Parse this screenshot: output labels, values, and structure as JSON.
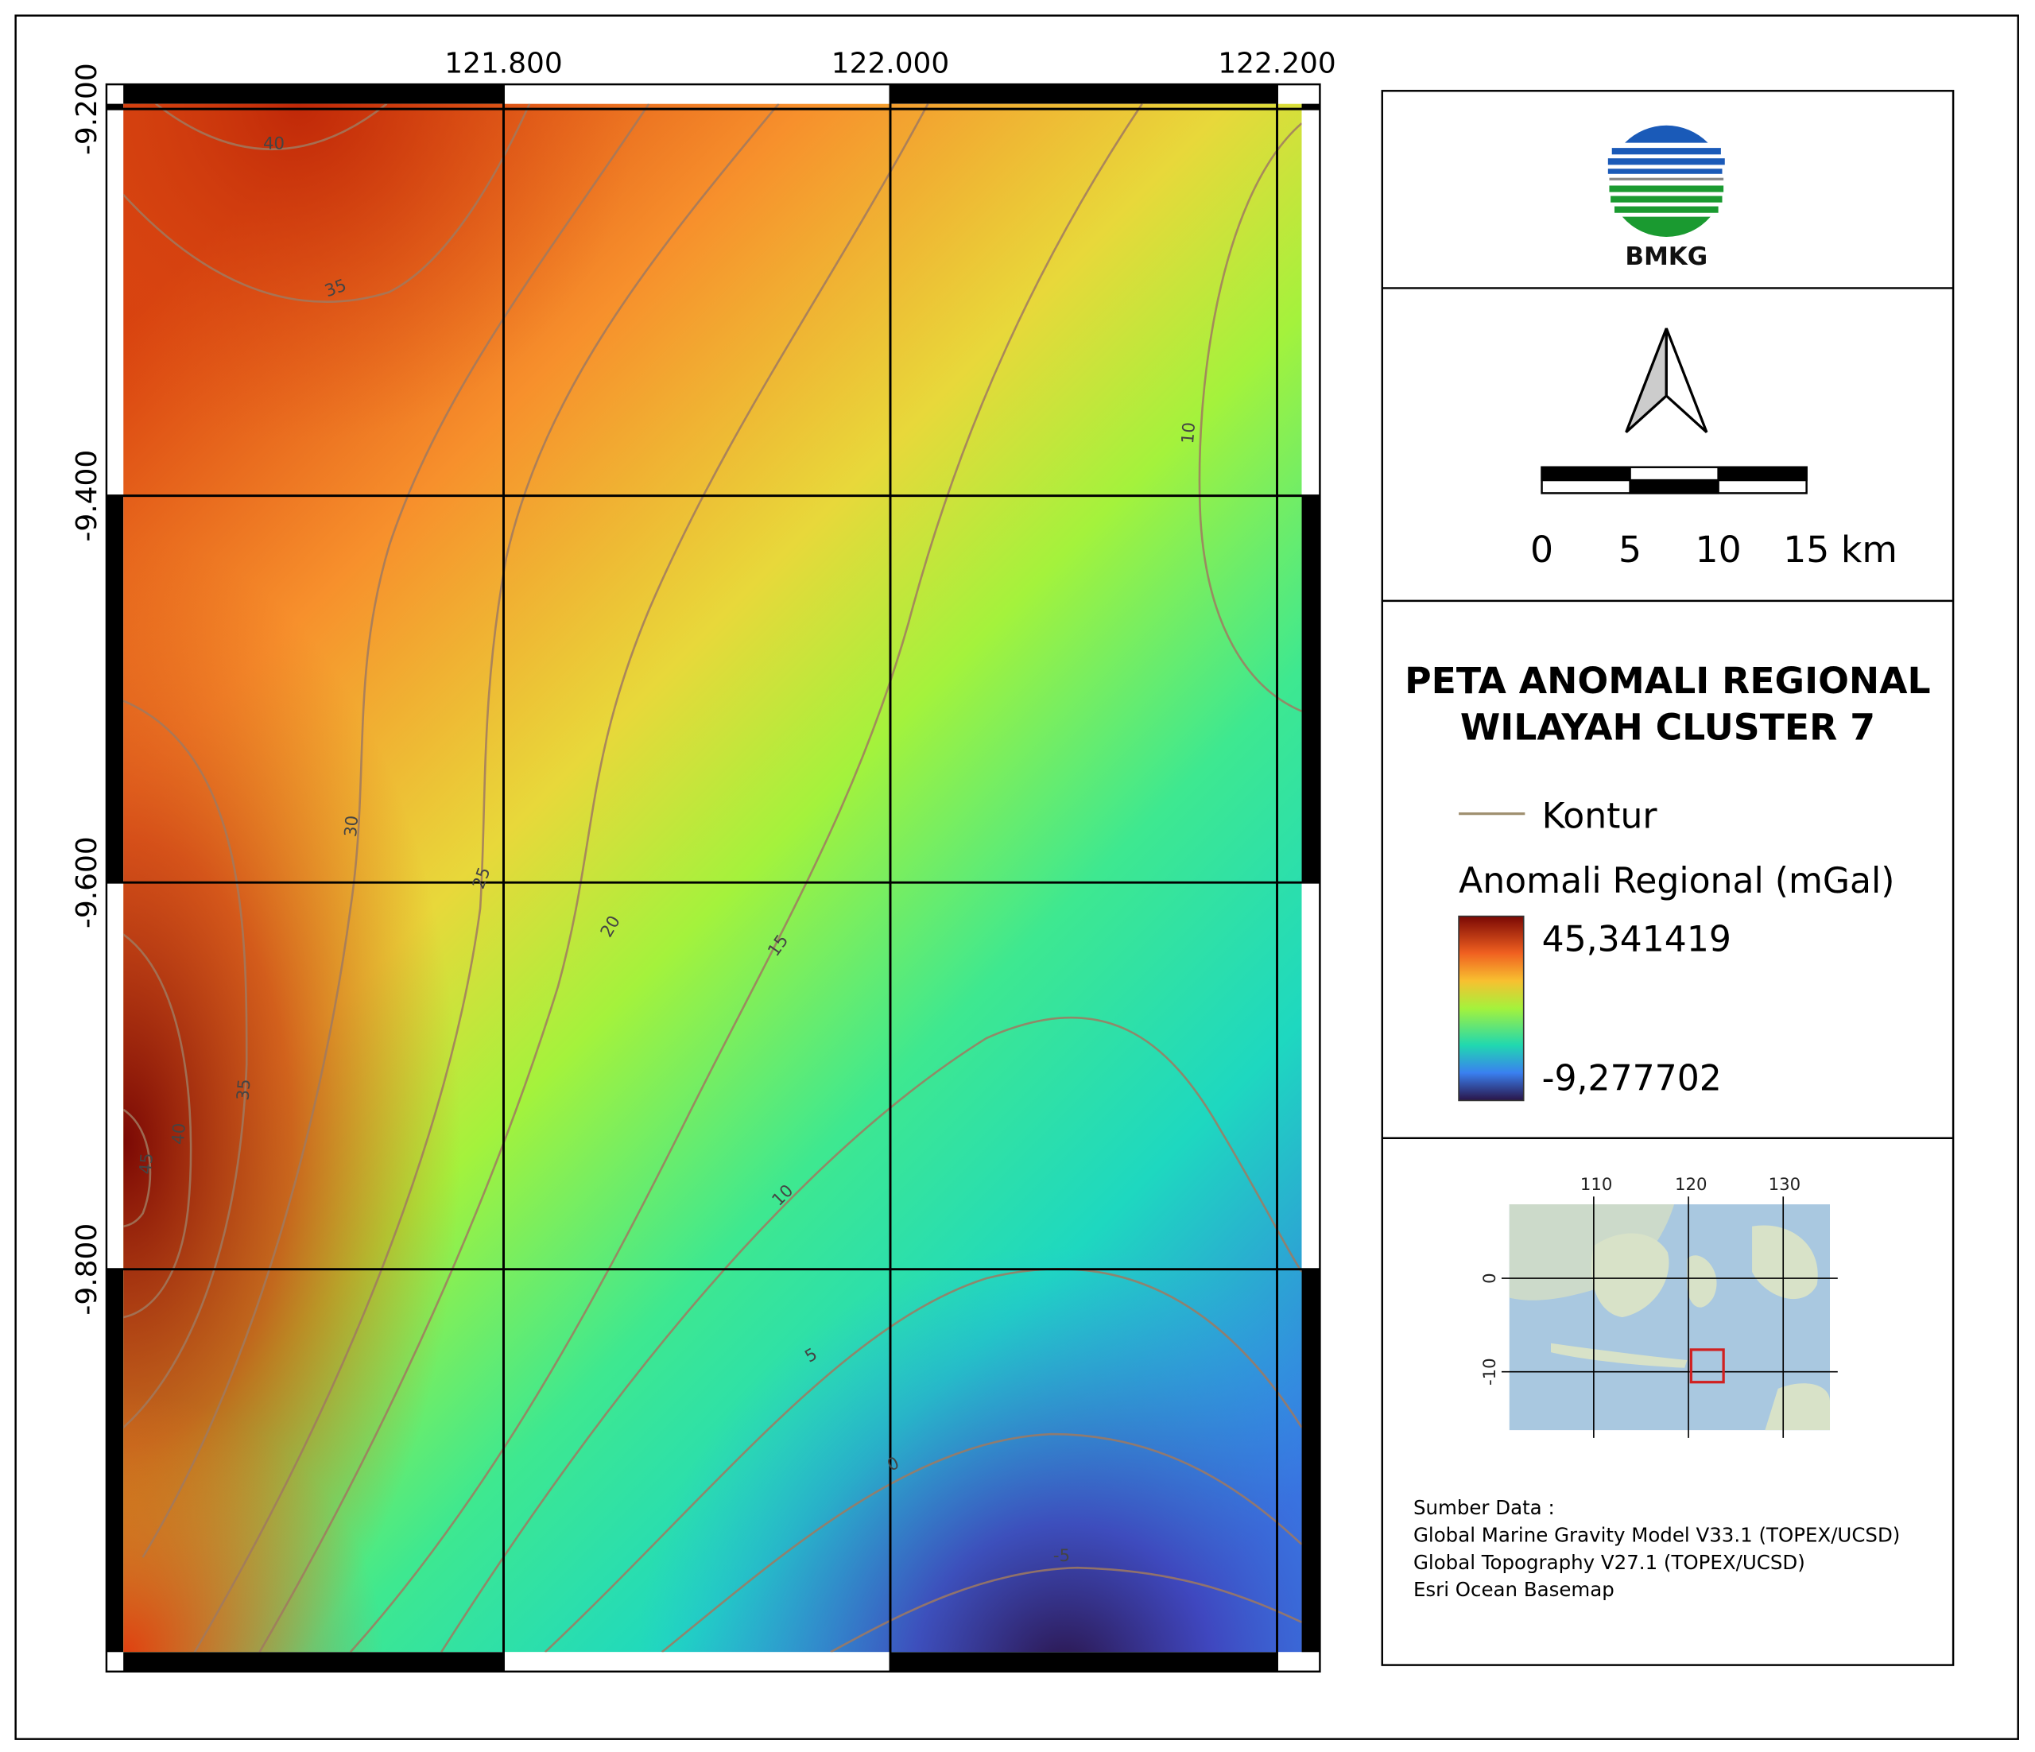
{
  "map": {
    "title_lines": [
      "PETA ANOMALI REGIONAL",
      "WILAYAH CLUSTER 7"
    ],
    "x_ticks": [
      "121.800",
      "122.000",
      "122.200"
    ],
    "y_ticks": [
      "-9.200",
      "-9.400",
      "-9.600",
      "-9.800"
    ],
    "contour_labels": [
      "40",
      "35",
      "10",
      "30",
      "25",
      "20",
      "15",
      "35",
      "40",
      "45",
      "10",
      "5",
      "0",
      "-5"
    ],
    "logo_text": "BMKG",
    "scale_labels": [
      "0",
      "5",
      "10",
      "15 km"
    ],
    "legend": {
      "contour": "Kontur",
      "ramp_title": "Anomali Regional (mGal)",
      "max": "45,341419",
      "min": "-9,277702"
    },
    "inset": {
      "x_ticks": [
        "110",
        "120",
        "130"
      ],
      "y_ticks": [
        "0",
        "-10"
      ]
    },
    "source": [
      "Sumber Data :",
      "Global Marine Gravity Model V33.1 (TOPEX/UCSD)",
      "Global Topography V27.1 (TOPEX/UCSD)",
      "Esri Ocean Basemap"
    ]
  }
}
